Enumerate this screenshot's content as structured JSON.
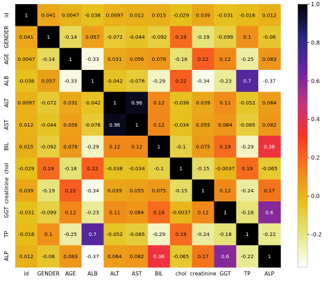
{
  "chart_data": {
    "type": "heatmap",
    "title": "",
    "xlabel": "",
    "ylabel": "",
    "labels": [
      "id",
      "GENDER",
      "AGE",
      "ALB",
      "ALT",
      "AST",
      "BIL",
      "chol",
      "creatinine",
      "GGT",
      "TP",
      "ALP"
    ],
    "matrix": [
      [
        1,
        0.041,
        0.0047,
        -0.038,
        0.0097,
        0.012,
        0.015,
        -0.029,
        0.039,
        -0.031,
        -0.016,
        0.012
      ],
      [
        0.041,
        1,
        -0.14,
        0.057,
        -0.072,
        -0.044,
        -0.092,
        0.19,
        -0.19,
        -0.099,
        0.1,
        -0.06
      ],
      [
        0.0047,
        -0.14,
        1,
        -0.33,
        0.031,
        0.056,
        0.078,
        -0.18,
        0.22,
        0.12,
        -0.25,
        0.083
      ],
      [
        -0.038,
        0.057,
        -0.33,
        1,
        -0.042,
        -0.076,
        -0.29,
        0.22,
        -0.34,
        -0.23,
        0.7,
        -0.37
      ],
      [
        0.0097,
        -0.072,
        0.031,
        -0.042,
        1,
        0.96,
        0.12,
        -0.038,
        0.039,
        0.11,
        -0.052,
        0.064
      ],
      [
        0.012,
        -0.044,
        0.056,
        -0.076,
        0.96,
        1,
        0.12,
        -0.034,
        0.055,
        0.084,
        -0.085,
        0.082
      ],
      [
        0.015,
        -0.092,
        0.078,
        -0.29,
        0.12,
        0.12,
        1,
        -0.1,
        0.075,
        0.19,
        -0.29,
        0.36
      ],
      [
        -0.029,
        0.19,
        -0.18,
        0.22,
        -0.038,
        -0.034,
        -0.1,
        1,
        -0.15,
        -0.0037,
        0.19,
        -0.065
      ],
      [
        0.039,
        -0.19,
        0.22,
        -0.34,
        0.039,
        0.055,
        0.075,
        -0.15,
        1,
        0.12,
        -0.24,
        0.17
      ],
      [
        -0.031,
        -0.099,
        0.12,
        -0.23,
        0.11,
        0.084,
        0.19,
        -0.0037,
        0.12,
        1,
        -0.18,
        0.6
      ],
      [
        -0.016,
        0.1,
        -0.25,
        0.7,
        -0.052,
        -0.085,
        -0.29,
        0.19,
        -0.24,
        -0.18,
        1,
        -0.22
      ],
      [
        0.012,
        -0.06,
        0.083,
        -0.37,
        0.064,
        0.082,
        0.36,
        -0.065,
        0.17,
        0.6,
        -0.22,
        1
      ]
    ],
    "colormap": "CMRmap_r",
    "colorbar": {
      "range": [
        -0.37,
        1
      ],
      "ticks": [
        -0.2,
        0,
        0.2,
        0.4,
        0.6,
        0.8,
        1.0
      ],
      "tick_labels": [
        "-0.2",
        "0.0",
        "0.2",
        "0.4",
        "0.6",
        "0.8",
        "1.0"
      ],
      "placement": "right"
    },
    "annotations": true
  }
}
